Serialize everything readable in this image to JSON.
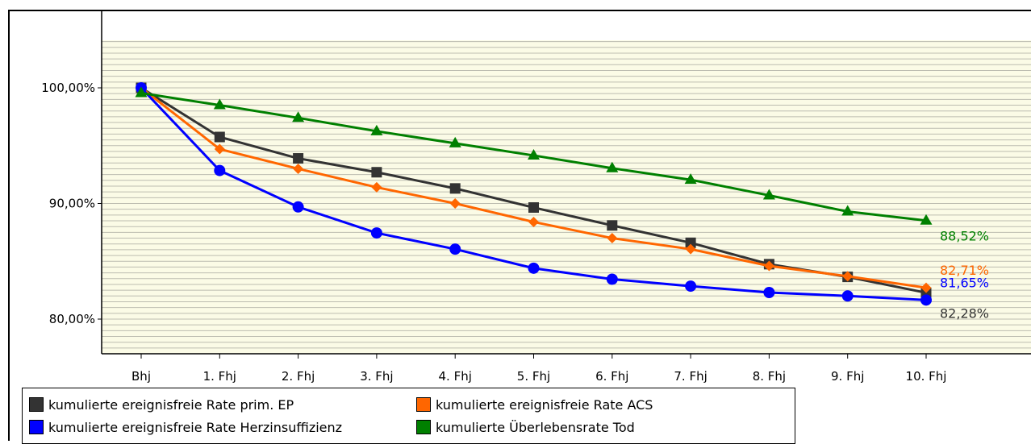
{
  "chart_data": {
    "type": "line",
    "categories": [
      "Bhj",
      "1. Fhj",
      "2. Fhj",
      "3. Fhj",
      "4. Fhj",
      "5. Fhj",
      "6. Fhj",
      "7. Fhj",
      "8. Fhj",
      "9. Fhj",
      "10. Fhj"
    ],
    "y_ticks": [
      "100,00%",
      "90,00%",
      "80,00%"
    ],
    "y_tick_values": [
      100,
      90,
      80
    ],
    "ylim": [
      77.5,
      104
    ],
    "grid": true,
    "legend_position": "bottom",
    "series": [
      {
        "name": "kumulierte ereignisfreie Rate prim. EP",
        "color": "#333333",
        "marker": "square",
        "values": [
          100.0,
          95.75,
          93.9,
          92.7,
          91.3,
          89.65,
          88.1,
          86.6,
          84.75,
          83.65,
          82.28
        ],
        "end_label": "82,28%"
      },
      {
        "name": "kumulierte ereignisfreie Rate ACS",
        "color": "#ff6600",
        "marker": "diamond",
        "values": [
          100.0,
          94.7,
          93.0,
          91.4,
          90.0,
          88.4,
          87.0,
          86.05,
          84.6,
          83.7,
          82.71
        ],
        "end_label": "82,71%"
      },
      {
        "name": "kumulierte ereignisfreie Rate Herzinsuffizienz",
        "color": "#0000ff",
        "marker": "circle",
        "values": [
          100.0,
          92.85,
          89.7,
          87.45,
          86.05,
          84.4,
          83.45,
          82.85,
          82.3,
          82.0,
          81.65
        ],
        "end_label": "81,65%"
      },
      {
        "name": "kumulierte Überlebensrate Tod",
        "color": "#008000",
        "marker": "triangle",
        "values": [
          99.55,
          98.5,
          97.4,
          96.25,
          95.2,
          94.15,
          93.05,
          92.05,
          90.7,
          89.3,
          88.52
        ],
        "end_label": "88,52%"
      }
    ]
  },
  "legend": {
    "items": [
      {
        "label": "kumulierte ereignisfreie Rate prim. EP",
        "color": "#333333"
      },
      {
        "label": "kumulierte ereignisfreie Rate ACS",
        "color": "#ff6600"
      },
      {
        "label": "kumulierte ereignisfreie Rate Herzinsuffizienz",
        "color": "#0000ff"
      },
      {
        "label": "kumulierte Überlebensrate Tod",
        "color": "#008000"
      }
    ]
  },
  "colors": {
    "plot_background": "#fbfbe6",
    "grid_line": "#bcbcb0"
  }
}
